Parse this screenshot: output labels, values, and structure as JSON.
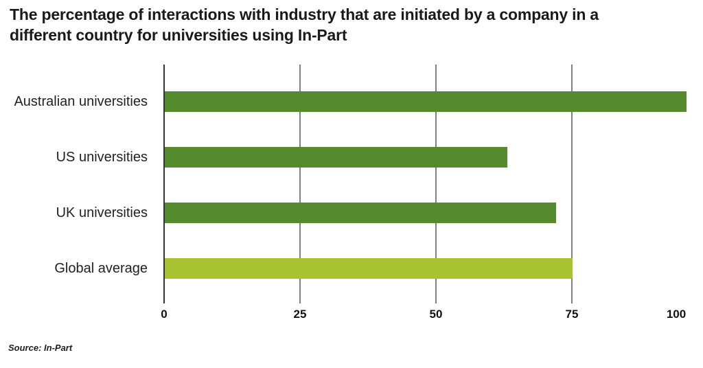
{
  "title": {
    "line1": "The percentage of interactions with industry that are initiated by a company in a",
    "line2": "different country for universities using In-Part"
  },
  "source": "Source: In-Part",
  "colors": {
    "bar_dark_green": "#558A2E",
    "bar_light_green": "#A9C22F",
    "gridline_gray": "#808080",
    "axis_dark": "#333333",
    "text_dark": "#1A1A1A"
  },
  "chart_data": {
    "type": "bar",
    "orientation": "horizontal",
    "title": "The percentage of interactions with industry that are initiated by a company in a different country for universities using In-Part",
    "categories": [
      "Australian universities",
      "US universities",
      "UK universities",
      "Global average"
    ],
    "values": [
      96,
      63,
      72,
      75
    ],
    "unit": "%",
    "xlabel": "",
    "ylabel": "",
    "xlim": [
      0,
      100
    ],
    "xticks": [
      0,
      25,
      50,
      75,
      100
    ],
    "bar_colors": [
      "#558A2E",
      "#558A2E",
      "#558A2E",
      "#A9C22F"
    ],
    "grid": "vertical gridlines at 25, 50, 75; axis line at 0",
    "legend": "none",
    "source": "Source: In-Part"
  }
}
